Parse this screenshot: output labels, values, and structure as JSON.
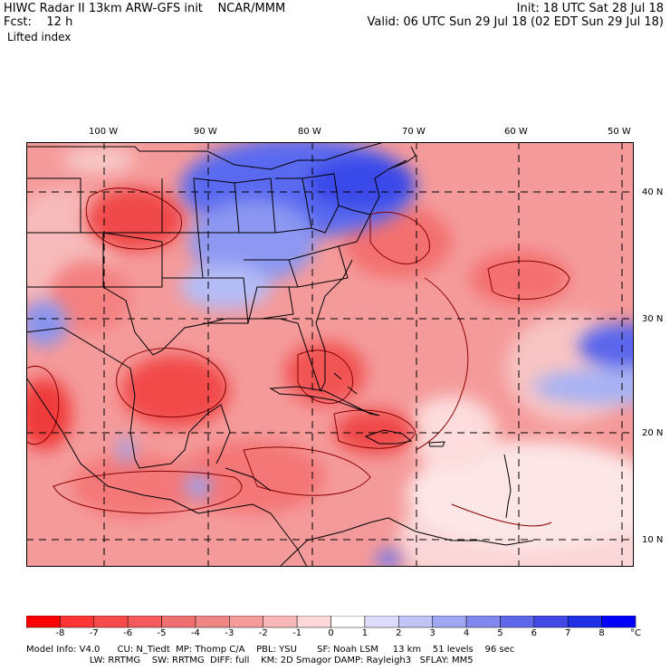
{
  "header": {
    "title": "HIWC Radar II 13km ARW-GFS init    NCAR/MMM",
    "forecast": "Fcst:    12 h",
    "field": "Lifted index",
    "init": "Init: 18 UTC Sat 28 Jul 18",
    "valid": "Valid: 06 UTC Sun 29 Jul 18 (02 EDT Sun 29 Jul 18)"
  },
  "map": {
    "lon_labels": [
      "100 W",
      "90 W",
      "80 W",
      "70 W",
      "60 W",
      "50 W"
    ],
    "lat_labels": [
      "40 N",
      "30 N",
      "20 N",
      "10 N"
    ],
    "colors": {
      "border": "#000000",
      "contour": "#8b0000",
      "stable": "#3b4fe6",
      "unstable": "#f05a5a"
    }
  },
  "colorbar": {
    "labels": [
      "-8",
      "-7",
      "-6",
      "-5",
      "-4",
      "-3",
      "-2",
      "-1",
      "0",
      "1",
      "2",
      "3",
      "4",
      "5",
      "6",
      "7",
      "8"
    ],
    "unit": "°C",
    "colors": [
      "#ff0000",
      "#ff3535",
      "#f94a4a",
      "#f45c5c",
      "#f07070",
      "#ee8686",
      "#f49c9c",
      "#f8b8b8",
      "#fcd8d8",
      "#ffffff",
      "#dcdcfa",
      "#c0c4f6",
      "#a0a8f2",
      "#8088ee",
      "#6068ea",
      "#4048e6",
      "#2030e6",
      "#0000ff"
    ]
  },
  "model_info": {
    "line1": "Model Info: V4.0      CU: N_Tiedt  MP: Thomp C/A    PBL: YSU       SF: Noah LSM     13 km    51 levels    96 sec",
    "line2": "                      LW: RRTMG    SW: RRTMG  DIFF: full    KM: 2D Smagor DAMP: Rayleigh3   SFLAY: MM5"
  }
}
